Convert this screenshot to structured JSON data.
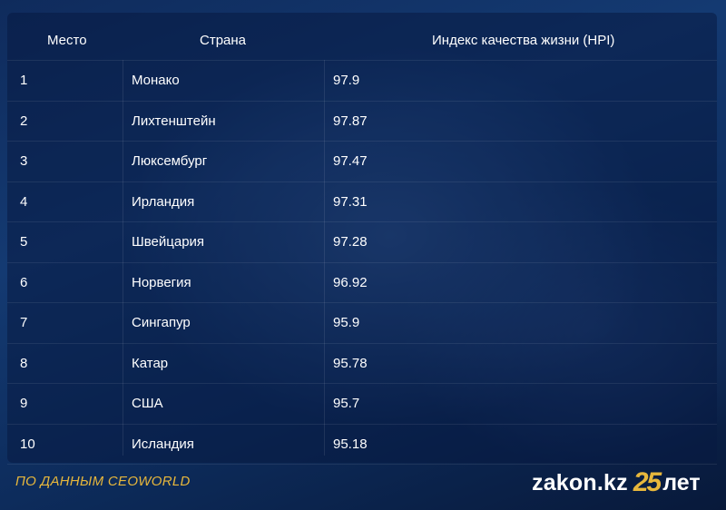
{
  "table": {
    "headers": {
      "place": "Место",
      "country": "Страна",
      "index": "Индекс качества жизни (HPI)"
    },
    "rows": [
      {
        "place": "1",
        "country": "Монако",
        "value": "97.9"
      },
      {
        "place": "2",
        "country": "Лихтенштейн",
        "value": "97.87"
      },
      {
        "place": "3",
        "country": "Люксембург",
        "value": "97.47"
      },
      {
        "place": "4",
        "country": "Ирландия",
        "value": "97.31"
      },
      {
        "place": "5",
        "country": "Швейцария",
        "value": "97.28"
      },
      {
        "place": "6",
        "country": "Норвегия",
        "value": "96.92"
      },
      {
        "place": "7",
        "country": "Сингапур",
        "value": "95.9"
      },
      {
        "place": "8",
        "country": "Катар",
        "value": "95.78"
      },
      {
        "place": "9",
        "country": "США",
        "value": "95.7"
      },
      {
        "place": "10",
        "country": "Исландия",
        "value": "95.18"
      }
    ]
  },
  "footer": {
    "source": "ПО ДАННЫМ CEOWORLD",
    "logo_text": "zakon.kz",
    "logo_number": "25",
    "logo_suffix": "лет"
  },
  "colors": {
    "accent": "#e7b73c",
    "background": "#0b2147"
  }
}
